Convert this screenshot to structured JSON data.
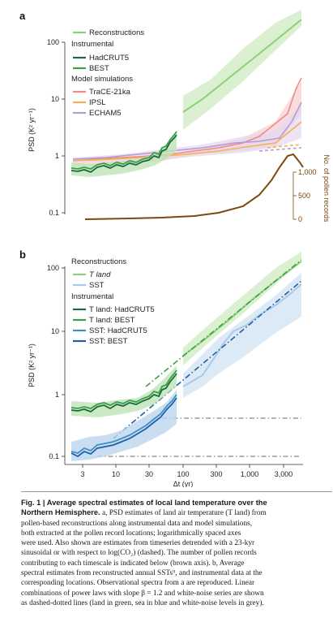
{
  "panel_a": {
    "letter": "a",
    "ylabel": "PSD (K² yr⁻¹)",
    "yticks": [
      "100",
      "10",
      "1",
      "0.1"
    ],
    "legend": {
      "reconstructions": "Reconstructions",
      "instrumental_header": "Instrumental",
      "hadcrut": "HadCRUT5",
      "best": "BEST",
      "models_header": "Model simulations",
      "trace": "TraCE-21ka",
      "ipsl": "IPSL",
      "echam": "ECHAM5"
    },
    "right_axis": {
      "label": "No. of pollen records",
      "ticks": [
        "1,000",
        "500",
        "0"
      ]
    }
  },
  "panel_b": {
    "letter": "b",
    "ylabel": "PSD (K² yr⁻¹)",
    "yticks": [
      "100",
      "10",
      "1",
      "0.1"
    ],
    "xticks": [
      "3",
      "10",
      "30",
      "100",
      "300",
      "1,000",
      "3,000"
    ],
    "xlabel": "Δt (yr)",
    "legend": {
      "reconstructions_header": "Reconstructions",
      "tland": "T land",
      "sst": "SST",
      "instrumental_header": "Instrumental",
      "tland_hadcrut": "T land: HadCRUT5",
      "tland_best": "T land: BEST",
      "sst_hadcrut": "SST: HadCRUT5",
      "sst_best": "SST: BEST"
    }
  },
  "colors": {
    "recon_green": "#8fce7a",
    "recon_green_band": "#d6eecb",
    "hadcrut_green": "#1c6b3a",
    "best_green": "#3aa04a",
    "trace": "#f08a8a",
    "ipsl": "#f4b24a",
    "echam": "#b69ad6",
    "pollen": "#7a4a10",
    "sst_light": "#a9c9e6",
    "sst_band": "#d8e8f5",
    "sst_hadcrut": "#3f8fc6",
    "sst_best": "#1f5fa8",
    "grey": "#9a9a9a"
  },
  "caption": {
    "lines": [
      {
        "bold": "Fig. 1 | Average spectral estimates of local land temperature over the",
        "text": ""
      },
      {
        "bold": "Northern Hemisphere.",
        "text": " a, PSD estimates of land air temperature (T land) from"
      },
      {
        "bold": "",
        "text": "pollen-based reconstructions along instrumental data and model simulations,"
      },
      {
        "bold": "",
        "text": "both extracted at the pollen record locations; logarithmically spaced axes"
      },
      {
        "bold": "",
        "text": "were used. Also shown are estimates from timeseries detrended with a 23-kyr"
      },
      {
        "bold": "",
        "text": "sinusoidal or with respect to log(CO₂) (dashed). The number of pollen records"
      },
      {
        "bold": "",
        "text": "contributing to each timescale is indicated below (brown axis). b, Average"
      },
      {
        "bold": "",
        "text": "spectral estimates from reconstructed annual SSTs⁹, and instrumental data at the"
      },
      {
        "bold": "",
        "text": "corresponding locations. Observational spectra from a are reproduced. Linear"
      },
      {
        "bold": "",
        "text": "combinations of power laws with slope β = 1.2 and white-noise series are shown"
      },
      {
        "bold": "",
        "text": "as dashed-dotted lines (land in green, sea in blue and white-noise levels in grey)."
      }
    ]
  }
}
